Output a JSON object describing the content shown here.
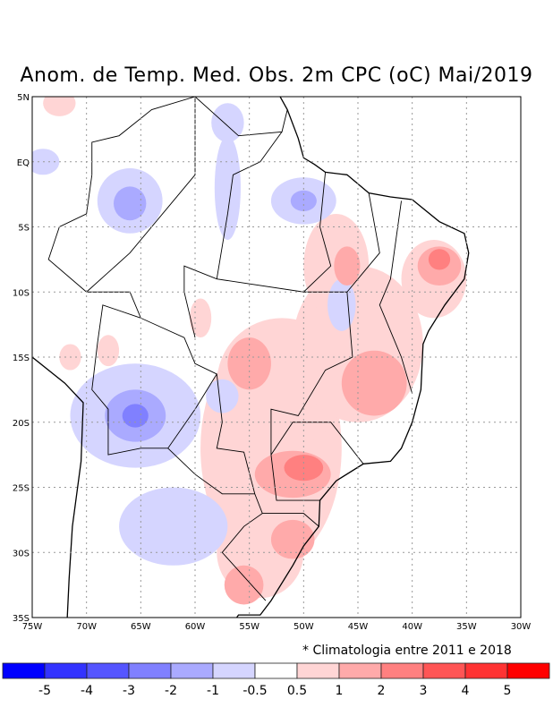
{
  "title": "Anom. de Temp. Med. Obs. 2m CPC (oC) Mai/2019",
  "note": "* Climatologia entre 2011 e 2018",
  "map": {
    "lon_range": [
      -75,
      -30
    ],
    "lat_range": [
      -35,
      5
    ],
    "lon_labels": [
      "75W",
      "70W",
      "65W",
      "60W",
      "55W",
      "50W",
      "45W",
      "40W",
      "35W",
      "30W"
    ],
    "lat_labels": [
      "5N",
      "EQ",
      "5S",
      "10S",
      "15S",
      "20S",
      "25S",
      "30S",
      "35S"
    ],
    "anomaly_regions": [
      {
        "lon": -53,
        "lat": -22,
        "rlon": 6.5,
        "rlat": 9,
        "value": 0.5
      },
      {
        "lon": -52,
        "lat": -17,
        "rlon": 6,
        "rlat": 5,
        "value": 0.5
      },
      {
        "lon": -45,
        "lat": -14,
        "rlon": 6,
        "rlat": 6,
        "value": 0.5
      },
      {
        "lon": -47,
        "lat": -8,
        "rlon": 3,
        "rlat": 4,
        "value": 0.5
      },
      {
        "lon": -38,
        "lat": -9,
        "rlon": 3,
        "rlat": 3,
        "value": 0.5
      },
      {
        "lon": -54,
        "lat": -30,
        "rlon": 4,
        "rlat": 3.5,
        "value": 0.5
      },
      {
        "lon": -71.5,
        "lat": -15,
        "rlon": 1,
        "rlat": 1,
        "value": 0.5
      },
      {
        "lon": -68,
        "lat": -14.5,
        "rlon": 1,
        "rlat": 1.2,
        "value": 0.5
      },
      {
        "lon": -72.5,
        "lat": 4.5,
        "rlon": 1.5,
        "rlat": 1,
        "value": 0.5
      },
      {
        "lon": -59.5,
        "lat": -12,
        "rlon": 1,
        "rlat": 1.5,
        "value": 0.5
      },
      {
        "lon": -65.5,
        "lat": -19.5,
        "rlon": 6,
        "rlat": 4,
        "value": -0.5
      },
      {
        "lon": -66,
        "lat": -3,
        "rlon": 3,
        "rlat": 2.5,
        "value": -0.5
      },
      {
        "lon": -50,
        "lat": -3,
        "rlon": 3,
        "rlat": 1.8,
        "value": -0.5
      },
      {
        "lon": -57,
        "lat": -2,
        "rlon": 1.2,
        "rlat": 4,
        "value": -0.5
      },
      {
        "lon": -62,
        "lat": -28,
        "rlon": 5,
        "rlat": 3,
        "value": -0.5
      },
      {
        "lon": -57.5,
        "lat": -18,
        "rlon": 1.5,
        "rlat": 1.3,
        "value": -0.5
      },
      {
        "lon": -46.5,
        "lat": -11,
        "rlon": 1.3,
        "rlat": 2,
        "value": -0.5
      },
      {
        "lon": -57,
        "lat": 3,
        "rlon": 1.5,
        "rlat": 1.5,
        "value": -0.5
      },
      {
        "lon": -74,
        "lat": 0,
        "rlon": 1.5,
        "rlat": 1,
        "value": -0.5
      },
      {
        "lon": -55,
        "lat": -15.5,
        "rlon": 2,
        "rlat": 2,
        "value": 1
      },
      {
        "lon": -43.5,
        "lat": -17,
        "rlon": 3,
        "rlat": 2.5,
        "value": 1
      },
      {
        "lon": -51,
        "lat": -24,
        "rlon": 3.5,
        "rlat": 1.8,
        "value": 1
      },
      {
        "lon": -55.5,
        "lat": -32.5,
        "rlon": 1.8,
        "rlat": 1.5,
        "value": 1
      },
      {
        "lon": -51,
        "lat": -29,
        "rlon": 2,
        "rlat": 1.5,
        "value": 1
      },
      {
        "lon": -37.5,
        "lat": -8,
        "rlon": 2,
        "rlat": 1.5,
        "value": 1
      },
      {
        "lon": -46,
        "lat": -8,
        "rlon": 1.2,
        "rlat": 1.5,
        "value": 1
      },
      {
        "lon": -50,
        "lat": -23.5,
        "rlon": 1.8,
        "rlat": 1,
        "value": 2
      },
      {
        "lon": -37.5,
        "lat": -7.5,
        "rlon": 1,
        "rlat": 0.8,
        "value": 2
      },
      {
        "lon": -65.5,
        "lat": -19.5,
        "rlon": 2.8,
        "rlat": 2,
        "value": -1
      },
      {
        "lon": -66,
        "lat": -3.2,
        "rlon": 1.5,
        "rlat": 1.3,
        "value": -1
      },
      {
        "lon": -50,
        "lat": -3,
        "rlon": 1.2,
        "rlat": 0.8,
        "value": -1
      },
      {
        "lon": -65.5,
        "lat": -19.5,
        "rlon": 1.2,
        "rlat": 0.9,
        "value": -2
      }
    ]
  },
  "colorbar": {
    "colors": [
      "#0000ff",
      "#3333ff",
      "#5555ff",
      "#8080ff",
      "#aaaaff",
      "#d5d5ff",
      "#ffffff",
      "#ffd5d5",
      "#ffaaaa",
      "#ff8080",
      "#ff5555",
      "#ff3333",
      "#ff0000"
    ],
    "labels": [
      "-5",
      "-4",
      "-3",
      "-2",
      "-1",
      "-0.5",
      "0.5",
      "1",
      "2",
      "3",
      "4",
      "5"
    ]
  }
}
